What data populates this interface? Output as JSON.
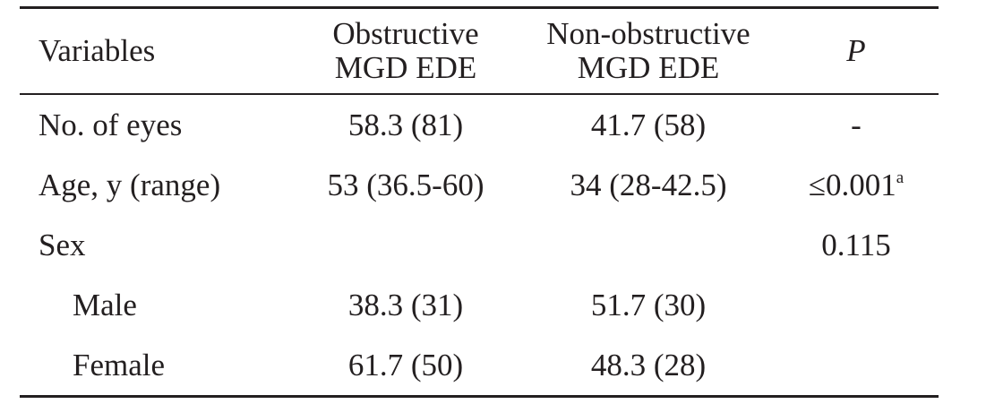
{
  "header": {
    "variables": "Variables",
    "col1_line1": "Obstructive",
    "col1_line2": "MGD EDE",
    "col2_line1": "Non-obstructive",
    "col2_line2": "MGD EDE",
    "p": "P"
  },
  "rows": [
    {
      "label": "No. of eyes",
      "obstructive": "58.3 (81)",
      "non_obstructive": "41.7 (58)",
      "p": "-",
      "p_sup": ""
    },
    {
      "label": "Age, y (range)",
      "obstructive": "53 (36.5-60)",
      "non_obstructive": "34 (28-42.5)",
      "p": "≤0.001",
      "p_sup": "a"
    },
    {
      "label": "Sex",
      "obstructive": "",
      "non_obstructive": "",
      "p": "0.115",
      "p_sup": ""
    },
    {
      "label": "Male",
      "obstructive": "38.3 (31)",
      "non_obstructive": "51.7 (30)",
      "p": "",
      "p_sup": ""
    },
    {
      "label": "Female",
      "obstructive": "61.7 (50)",
      "non_obstructive": "48.3 (28)",
      "p": "",
      "p_sup": ""
    }
  ]
}
